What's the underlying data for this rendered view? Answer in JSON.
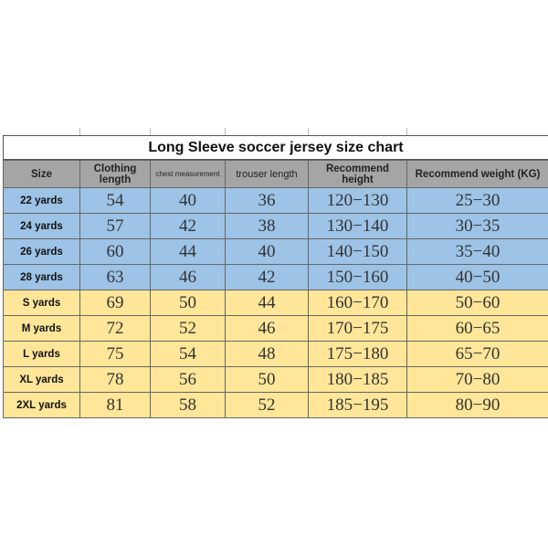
{
  "title": "Long Sleeve soccer jersey size chart",
  "headers": [
    "Size",
    "Clothing length",
    "chest measurement",
    "trouser length",
    "Recommend height",
    "Recommend weight (KG)"
  ],
  "colors": {
    "header": "#a5a5a5",
    "kids_rows": "#9dc3e6",
    "adult_rows": "#ffe699"
  },
  "rows": [
    {
      "size": "22 yards",
      "clothing": "54",
      "chest": "40",
      "trouser": "36",
      "height": "120−130",
      "weight": "25−30",
      "group": "blue"
    },
    {
      "size": "24 yards",
      "clothing": "57",
      "chest": "42",
      "trouser": "38",
      "height": "130−140",
      "weight": "30−35",
      "group": "blue"
    },
    {
      "size": "26 yards",
      "clothing": "60",
      "chest": "44",
      "trouser": "40",
      "height": "140−150",
      "weight": "35−40",
      "group": "blue"
    },
    {
      "size": "28 yards",
      "clothing": "63",
      "chest": "46",
      "trouser": "42",
      "height": "150−160",
      "weight": "40−50",
      "group": "blue"
    },
    {
      "size": "S yards",
      "clothing": "69",
      "chest": "50",
      "trouser": "44",
      "height": "160−170",
      "weight": "50−60",
      "group": "yellow"
    },
    {
      "size": "M yards",
      "clothing": "72",
      "chest": "52",
      "trouser": "46",
      "height": "170−175",
      "weight": "60−65",
      "group": "yellow"
    },
    {
      "size": "L yards",
      "clothing": "75",
      "chest": "54",
      "trouser": "48",
      "height": "175−180",
      "weight": "65−70",
      "group": "yellow"
    },
    {
      "size": "XL yards",
      "clothing": "78",
      "chest": "56",
      "trouser": "50",
      "height": "180−185",
      "weight": "70−80",
      "group": "yellow"
    },
    {
      "size": "2XL yards",
      "clothing": "81",
      "chest": "58",
      "trouser": "52",
      "height": "185−195",
      "weight": "80−90",
      "group": "yellow"
    }
  ]
}
